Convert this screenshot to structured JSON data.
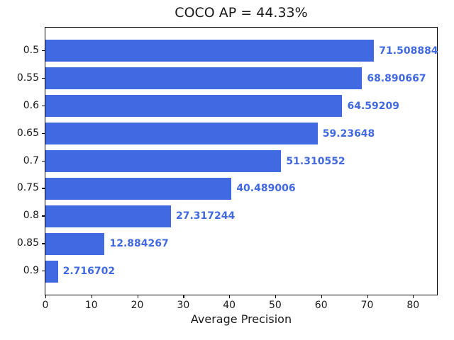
{
  "figure": {
    "background": "#ffffff"
  },
  "chart_data": {
    "type": "bar",
    "orientation": "horizontal",
    "title": "COCO AP = 44.33%",
    "xlabel": "Average Precision",
    "ylabel": "",
    "categories": [
      "0.5",
      "0.55",
      "0.6",
      "0.65",
      "0.7",
      "0.75",
      "0.8",
      "0.85",
      "0.9"
    ],
    "values": [
      71.508884,
      68.890667,
      64.59209,
      59.23648,
      51.310552,
      40.489006,
      27.317244,
      12.884267,
      2.716702
    ],
    "value_labels": [
      "71.508884",
      "68.890667",
      "64.59209",
      "59.23648",
      "51.310552",
      "40.489006",
      "27.317244",
      "12.884267",
      "2.716702"
    ],
    "xticks": [
      "0",
      "10",
      "20",
      "30",
      "40",
      "50",
      "60",
      "70",
      "80"
    ],
    "xtick_values": [
      0,
      10,
      20,
      30,
      40,
      50,
      60,
      70,
      80
    ],
    "xlim": [
      0,
      85.2
    ],
    "grid": false,
    "legend": null,
    "bar_color": "#4169e1",
    "value_label_color": "#4169e1",
    "axis_color": "#000000"
  }
}
